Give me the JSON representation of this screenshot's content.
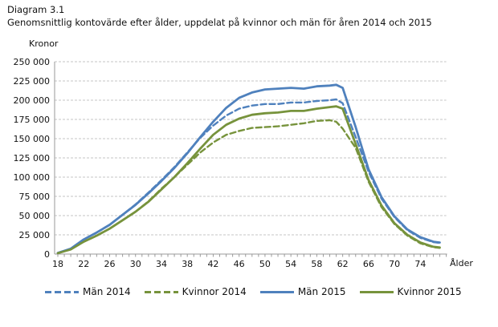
{
  "page": {
    "title_line1": "Diagram 3.1",
    "title_line2": "Genomsnittlig kontovärde efter ålder, uppdelat på kvinnor och män för åren 2014 och 2015"
  },
  "chart_data": {
    "type": "line",
    "title": "Diagram 3.1",
    "subtitle": "Genomsnittlig kontovärde efter ålder, uppdelat på kvinnor och män för åren 2014 och 2015",
    "ylabel": "Kronor",
    "xlabel": "Ålder",
    "xlim": [
      18,
      78
    ],
    "ylim": [
      0,
      250000
    ],
    "ytick_step": 25000,
    "yticks": [
      0,
      25000,
      50000,
      75000,
      100000,
      125000,
      150000,
      175000,
      200000,
      225000,
      250000
    ],
    "xtick_labels": [
      18,
      22,
      26,
      30,
      34,
      38,
      42,
      46,
      50,
      54,
      58,
      62,
      66,
      70,
      74
    ],
    "minor_xtick_every": 1,
    "grid": "horizontal-dashed",
    "legend_position": "bottom",
    "ages": [
      18,
      20,
      22,
      24,
      26,
      28,
      30,
      32,
      34,
      36,
      38,
      40,
      42,
      44,
      46,
      48,
      50,
      52,
      54,
      56,
      58,
      60,
      61,
      62,
      64,
      66,
      68,
      70,
      72,
      74,
      76,
      77
    ],
    "series": [
      {
        "name": "Män 2014",
        "color": "#4f81bd",
        "style": "dashed",
        "values": [
          1500,
          7000,
          19000,
          28000,
          38000,
          51000,
          64500,
          80000,
          96000,
          113000,
          132000,
          151000,
          167000,
          180000,
          189000,
          193000,
          195000,
          195000,
          197000,
          197000,
          199000,
          200000,
          201000,
          196000,
          152000,
          107000,
          72000,
          48000,
          31000,
          21000,
          15500,
          14500
        ]
      },
      {
        "name": "Kvinnor 2014",
        "color": "#77933c",
        "style": "dashed",
        "values": [
          1200,
          6000,
          16000,
          24000,
          33000,
          44000,
          55000,
          68500,
          85000,
          100000,
          116000,
          132000,
          145000,
          155000,
          160000,
          164000,
          165000,
          166000,
          168000,
          170000,
          173000,
          174000,
          172000,
          163000,
          138000,
          94000,
          61000,
          39000,
          24000,
          14000,
          9000,
          8000
        ]
      },
      {
        "name": "Män 2015",
        "color": "#4f81bd",
        "style": "solid",
        "values": [
          1500,
          7000,
          19000,
          28000,
          38000,
          51000,
          64000,
          79000,
          95000,
          112000,
          131000,
          152000,
          172000,
          190000,
          203000,
          210000,
          214000,
          215000,
          216000,
          215000,
          218000,
          219000,
          220000,
          216000,
          165000,
          110000,
          74000,
          49000,
          32000,
          22000,
          16000,
          15000
        ]
      },
      {
        "name": "Kvinnor 2015",
        "color": "#77933c",
        "style": "solid",
        "values": [
          1200,
          6000,
          16000,
          24000,
          33000,
          44000,
          55000,
          68000,
          84000,
          100000,
          118000,
          137000,
          155000,
          168000,
          176000,
          181000,
          183000,
          184000,
          186000,
          186000,
          189000,
          191000,
          192000,
          189000,
          143000,
          96000,
          63000,
          40000,
          25000,
          15000,
          9500,
          8500
        ]
      }
    ],
    "colors": {
      "men": "#4f81bd",
      "women": "#77933c",
      "gridline": "#c6c6c6",
      "axis": "#9a9a9a"
    }
  }
}
